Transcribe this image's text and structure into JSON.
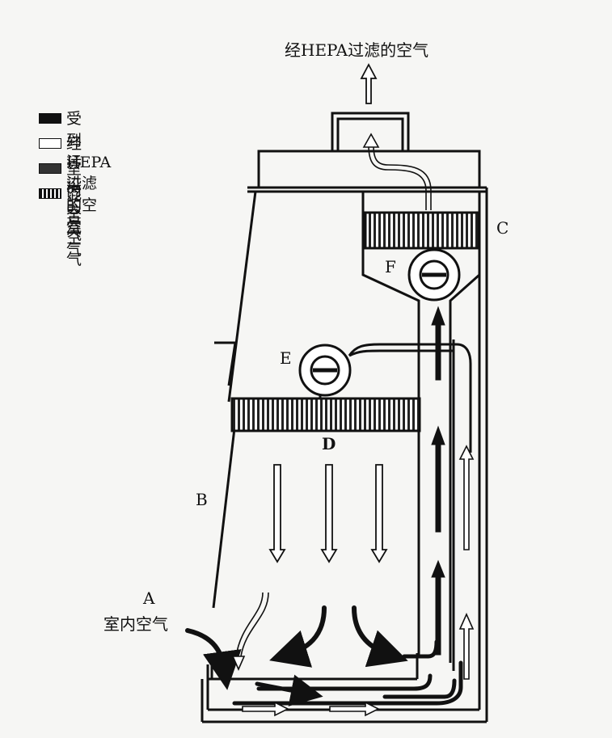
{
  "title": "经HEPA过滤的空气",
  "legend": [
    {
      "label": "受到污染的空气",
      "swatch": "solid-black",
      "color": "#111111"
    },
    {
      "label": "经HEPA过滤的空气",
      "swatch": "white-outline",
      "color": "#ffffff"
    },
    {
      "label": "室内空气",
      "swatch": "dark-gray",
      "color": "#333333"
    },
    {
      "label": "混合空气",
      "swatch": "striped",
      "color": "#555555"
    }
  ],
  "labels": {
    "A": "A",
    "room_air": "室内空气",
    "B": "B",
    "C": "C",
    "D": "D",
    "E": "E",
    "F": "F"
  }
}
